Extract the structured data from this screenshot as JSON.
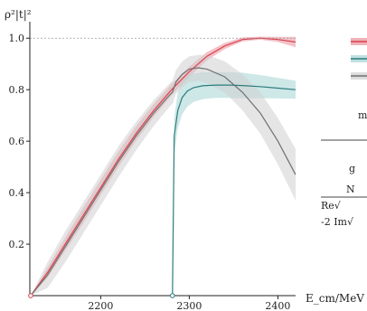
{
  "chart_data": {
    "type": "line",
    "ylabel": "ρ²|t|²",
    "xlabel": "E_cm/MeV",
    "xlim": [
      2120,
      2420
    ],
    "ylim": [
      0,
      1.05
    ],
    "x_ticks": [
      2200,
      2300,
      2400
    ],
    "y_ticks": [
      0.2,
      0.4,
      0.6,
      0.8,
      1.0
    ],
    "x_tick_labels": [
      "2200",
      "2300",
      "2400"
    ],
    "y_tick_labels": [
      "0.2",
      "0.4",
      "0.6",
      "0.8",
      "1.0"
    ],
    "unitarity_line": 1.0,
    "grid": false,
    "legend_position": "right",
    "series": [
      {
        "color": "#d9434f",
        "band_color": "#e9909a",
        "threshold_x": 2121,
        "x": [
          2121,
          2140,
          2160,
          2180,
          2200,
          2220,
          2240,
          2260,
          2280,
          2300,
          2320,
          2340,
          2360,
          2380,
          2400,
          2420
        ],
        "y": [
          0.0,
          0.09,
          0.2,
          0.31,
          0.42,
          0.53,
          0.63,
          0.72,
          0.8,
          0.87,
          0.93,
          0.97,
          0.995,
          1.0,
          0.995,
          0.985
        ],
        "band": [
          0.0,
          0.02,
          0.025,
          0.03,
          0.03,
          0.03,
          0.028,
          0.025,
          0.022,
          0.02,
          0.016,
          0.012,
          0.008,
          0.006,
          0.01,
          0.02
        ]
      },
      {
        "color": "#2b7d7d",
        "band_color": "#a6d3d3",
        "threshold_x": 2281,
        "x": [
          2281,
          2283,
          2287,
          2292,
          2298,
          2305,
          2315,
          2330,
          2345,
          2360,
          2380,
          2400,
          2420
        ],
        "y": [
          0.0,
          0.62,
          0.72,
          0.77,
          0.795,
          0.808,
          0.815,
          0.818,
          0.818,
          0.816,
          0.812,
          0.806,
          0.8
        ],
        "band": [
          0.0,
          0.07,
          0.07,
          0.065,
          0.06,
          0.055,
          0.052,
          0.05,
          0.05,
          0.05,
          0.045,
          0.04,
          0.035
        ]
      },
      {
        "color": "#707070",
        "band_color": "#cfcfcf",
        "threshold_x": 2121,
        "x": [
          2121,
          2140,
          2160,
          2180,
          2200,
          2220,
          2240,
          2260,
          2278,
          2281,
          2285,
          2292,
          2300,
          2310,
          2320,
          2340,
          2360,
          2380,
          2400,
          2420
        ],
        "y": [
          0.0,
          0.08,
          0.19,
          0.3,
          0.41,
          0.52,
          0.62,
          0.71,
          0.78,
          0.79,
          0.83,
          0.86,
          0.88,
          0.885,
          0.88,
          0.85,
          0.79,
          0.71,
          0.6,
          0.47
        ],
        "band": [
          0.0,
          0.05,
          0.06,
          0.06,
          0.06,
          0.06,
          0.055,
          0.05,
          0.045,
          0.045,
          0.045,
          0.05,
          0.05,
          0.05,
          0.055,
          0.06,
          0.07,
          0.08,
          0.09,
          0.1
        ]
      }
    ],
    "legend_swatches": [
      {
        "color": "#d9434f",
        "band_color": "#e9909a"
      },
      {
        "color": "#2b7d7d",
        "band_color": "#a6d3d3"
      },
      {
        "color": "#707070",
        "band_color": "#cfcfcf"
      }
    ],
    "legend_table": [
      "m",
      "g",
      "N",
      "Re√",
      "-2 Im√"
    ]
  }
}
